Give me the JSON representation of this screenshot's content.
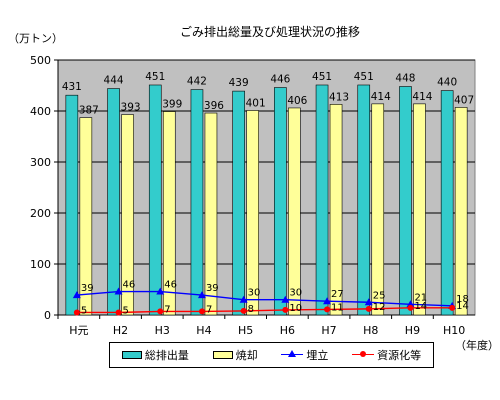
{
  "chart_data": {
    "type": "bar",
    "title": "ごみ排出総量及び処理状況の推移",
    "ylabel": "（万トン）",
    "xlabel": "（年度）",
    "ylim": [
      0,
      500
    ],
    "yticks": [
      0,
      100,
      200,
      300,
      400,
      500
    ],
    "grid": true,
    "legend_position": "bottom",
    "categories": [
      "H元",
      "H2",
      "H3",
      "H4",
      "H5",
      "H6",
      "H7",
      "H8",
      "H9",
      "H10"
    ],
    "series": [
      {
        "name": "総排出量",
        "kind": "bar",
        "color": "#33cccc",
        "values": [
          431,
          444,
          451,
          442,
          439,
          446,
          451,
          451,
          448,
          440
        ]
      },
      {
        "name": "焼却",
        "kind": "bar",
        "color": "#ffff99",
        "values": [
          387,
          393,
          399,
          396,
          401,
          406,
          413,
          414,
          414,
          407
        ]
      },
      {
        "name": "埋立",
        "kind": "line",
        "marker": "triangle",
        "color": "#0000ff",
        "values": [
          39,
          46,
          46,
          39,
          30,
          30,
          27,
          25,
          21,
          18
        ]
      },
      {
        "name": "資源化等",
        "kind": "line",
        "marker": "circle",
        "color": "#ff0000",
        "values": [
          5,
          5,
          7,
          7,
          8,
          10,
          11,
          12,
          14,
          14
        ]
      }
    ]
  }
}
